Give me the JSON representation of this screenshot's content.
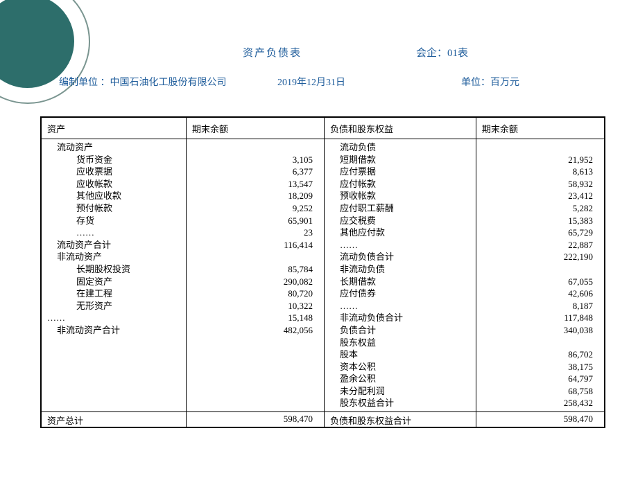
{
  "header": {
    "title": "资产负债表",
    "form_label": "会企：01表"
  },
  "subheader": {
    "company": "编制单位 ：中国石油化工股份有限公司",
    "date": "2019年12月31日",
    "unit": "单位：百万元"
  },
  "columns": {
    "c1": "资产",
    "c2": "期末余额",
    "c3": "负债和股东权益",
    "c4": "期末余额"
  },
  "left": {
    "section1": "流动资产",
    "items1": [
      {
        "label": "货币资金",
        "val": "3,105"
      },
      {
        "label": "应收票据",
        "val": "6,377"
      },
      {
        "label": "应收帐款",
        "val": "13,547"
      },
      {
        "label": "其他应收款",
        "val": "18,209"
      },
      {
        "label": "预付帐款",
        "val": "9,252"
      },
      {
        "label": "存货",
        "val": "65,901"
      },
      {
        "label": "……",
        "val": "23"
      }
    ],
    "subtotal1_label": "流动资产合计",
    "subtotal1_val": "116,414",
    "section2": "非流动资产",
    "items2": [
      {
        "label": "长期股权投资",
        "val": "85,784"
      },
      {
        "label": "固定资产",
        "val": "290,082"
      },
      {
        "label": "在建工程",
        "val": "80,720"
      },
      {
        "label": "无形资产",
        "val": "10,322"
      }
    ],
    "ellipsis2": "……",
    "ellipsis2_val": "15,148",
    "subtotal2_label": "非流动资产合计",
    "subtotal2_val": "482,056"
  },
  "right": {
    "section1": "流动负债",
    "items1": [
      {
        "label": "短期借款",
        "val": "21,952"
      },
      {
        "label": "应付票据",
        "val": "8,613"
      },
      {
        "label": "应付帐款",
        "val": "58,932"
      },
      {
        "label": "预收帐款",
        "val": "23,412"
      },
      {
        "label": "应付职工薪酬",
        "val": "5,282"
      },
      {
        "label": "应交税费",
        "val": "15,383"
      },
      {
        "label": "其他应付款",
        "val": "65,729"
      },
      {
        "label": "……",
        "val": "22,887"
      }
    ],
    "subtotal1_label": "流动负债合计",
    "subtotal1_val": "222,190",
    "section2": "非流动负债",
    "items2": [
      {
        "label": "长期借款",
        "val": "67,055"
      },
      {
        "label": "应付债券",
        "val": "42,606"
      },
      {
        "label": "……",
        "val": "8,187"
      }
    ],
    "subtotal2_label": "非流动负债合计",
    "subtotal2_val": "117,848",
    "liab_total_label": "负债合计",
    "liab_total_val": "340,038",
    "section3": "股东权益",
    "items3": [
      {
        "label": "股本",
        "val": "86,702"
      },
      {
        "label": "资本公积",
        "val": "38,175"
      },
      {
        "label": "盈余公积",
        "val": "64,797"
      },
      {
        "label": "未分配利润",
        "val": "68,758"
      }
    ],
    "equity_total_label": "股东权益合计",
    "equity_total_val": "258,432"
  },
  "footer": {
    "left_label": "资产总计",
    "left_val": "598,470",
    "right_label": "负债和股东权益合计",
    "right_val": "598,470"
  },
  "colors": {
    "accent_text": "#1e5c9b",
    "circle_fill": "#2d6e6b",
    "circle_border": "#7a9590",
    "text": "#000000",
    "background": "#ffffff"
  },
  "typography": {
    "base_font_size": 13,
    "header_font_size": 15,
    "line_height": 17.6
  }
}
